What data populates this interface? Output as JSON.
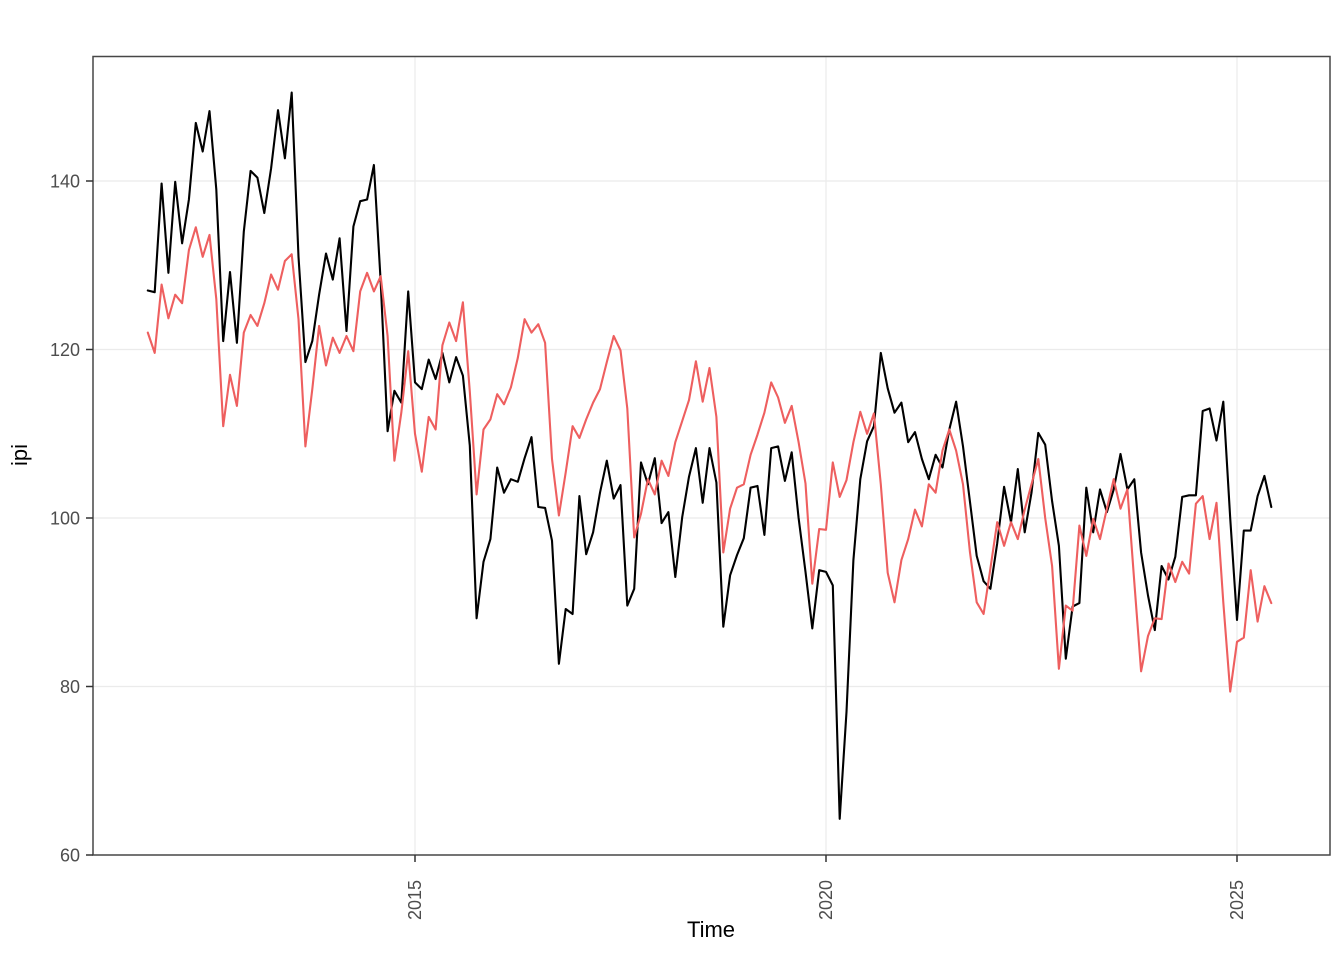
{
  "chart_data": {
    "type": "line",
    "title": "",
    "xlabel": "Time",
    "ylabel": "ipi",
    "x_start_decimal_year": 2011.75,
    "x_step": "monthly",
    "x_ticks": [
      2015,
      2020,
      2025
    ],
    "y_ticks": [
      60,
      80,
      100,
      120,
      140
    ],
    "xlim": [
      2011.08,
      2026.13
    ],
    "ylim": [
      59.9,
      154.9
    ],
    "grid": true,
    "legend_position": "none",
    "panel_border_color": "#474747",
    "grid_color": "#EBEBEB",
    "tick_label_color": "#4D4D4D",
    "series": [
      {
        "name": "series-black",
        "color": "#000000",
        "values": [
          127.0,
          126.8,
          139.7,
          129.1,
          139.9,
          132.6,
          137.8,
          146.9,
          143.5,
          148.3,
          139.0,
          121.0,
          129.2,
          120.8,
          134.0,
          141.2,
          140.4,
          136.2,
          141.5,
          148.4,
          142.7,
          150.5,
          131.0,
          118.5,
          121.0,
          126.5,
          131.4,
          128.3,
          133.2,
          122.2,
          134.6,
          137.6,
          137.8,
          141.9,
          128.0,
          110.3,
          115.1,
          113.7,
          126.9,
          116.1,
          115.3,
          118.8,
          116.5,
          119.6,
          116.1,
          119.1,
          116.9,
          108.6,
          88.1,
          94.8,
          97.5,
          106.0,
          103.0,
          104.6,
          104.3,
          107.1,
          109.6,
          101.3,
          101.2,
          97.3,
          82.7,
          89.2,
          88.6,
          102.6,
          95.7,
          98.3,
          103.0,
          106.8,
          102.3,
          103.9,
          89.6,
          91.6,
          106.6,
          104.0,
          107.1,
          99.4,
          100.7,
          93.0,
          100.1,
          104.9,
          108.3,
          101.8,
          108.3,
          104.2,
          87.1,
          93.2,
          95.6,
          97.6,
          103.6,
          103.8,
          98.0,
          108.3,
          108.5,
          104.4,
          107.8,
          100.0,
          93.6,
          86.9,
          93.8,
          93.6,
          92.0,
          64.3,
          77.0,
          95.0,
          104.6,
          109.1,
          110.9,
          119.6,
          115.4,
          112.5,
          113.7,
          109.0,
          110.2,
          107.0,
          104.6,
          107.5,
          106.0,
          110.5,
          113.8,
          108.5,
          102.0,
          95.5,
          92.5,
          91.6,
          97.0,
          103.7,
          99.5,
          105.8,
          98.3,
          103.0,
          110.1,
          108.7,
          102.0,
          96.7,
          83.3,
          89.5,
          89.9,
          103.6,
          98.3,
          103.4,
          100.7,
          103.4,
          107.6,
          103.4,
          104.6,
          95.9,
          90.8,
          86.7,
          94.3,
          92.7,
          95.4,
          102.5,
          102.7,
          102.7,
          112.7,
          113.0,
          109.2,
          113.8,
          100.0,
          87.9,
          98.5,
          98.5,
          102.6,
          105.0,
          101.3
        ]
      },
      {
        "name": "series-red",
        "color": "#EE5F5F",
        "values": [
          122.0,
          119.6,
          127.7,
          123.7,
          126.5,
          125.5,
          131.8,
          134.5,
          131.0,
          133.6,
          126.0,
          110.9,
          117.0,
          113.3,
          122.0,
          124.1,
          122.8,
          125.5,
          128.9,
          127.1,
          130.5,
          131.3,
          123.6,
          108.5,
          115.3,
          122.8,
          118.1,
          121.4,
          119.6,
          121.6,
          119.8,
          126.9,
          129.1,
          126.9,
          128.7,
          121.6,
          106.8,
          112.5,
          119.8,
          110.0,
          105.5,
          112.0,
          110.5,
          120.5,
          123.2,
          121.0,
          125.6,
          115.0,
          102.8,
          110.5,
          111.7,
          114.7,
          113.5,
          115.5,
          119.0,
          123.6,
          122.0,
          123.0,
          120.8,
          107.0,
          100.3,
          105.4,
          110.9,
          109.5,
          111.7,
          113.7,
          115.3,
          118.5,
          121.6,
          119.9,
          113.0,
          97.7,
          100.5,
          104.6,
          102.8,
          106.8,
          105.0,
          109.0,
          111.5,
          114.0,
          118.6,
          113.8,
          117.8,
          112.0,
          95.9,
          101.1,
          103.6,
          104.0,
          107.5,
          109.9,
          112.5,
          116.1,
          114.3,
          111.3,
          113.3,
          109.0,
          104.1,
          92.2,
          98.7,
          98.6,
          106.6,
          102.5,
          104.5,
          109.0,
          112.6,
          110.0,
          112.4,
          104.0,
          93.5,
          90.0,
          95.0,
          97.5,
          101.0,
          99.0,
          104.0,
          103.0,
          108.0,
          110.5,
          108.0,
          104.0,
          96.0,
          90.0,
          88.6,
          94.0,
          99.5,
          96.7,
          99.5,
          97.5,
          101.0,
          104.0,
          107.0,
          100.0,
          94.3,
          82.1,
          89.6,
          89.0,
          99.1,
          95.5,
          99.9,
          97.5,
          101.1,
          104.6,
          101.1,
          103.4,
          92.4,
          81.8,
          86.0,
          88.1,
          88.0,
          94.6,
          92.4,
          94.8,
          93.4,
          101.7,
          102.6,
          97.5,
          101.8,
          90.0,
          79.4,
          85.3,
          85.8,
          93.8,
          87.7,
          91.9,
          89.9
        ]
      }
    ]
  }
}
